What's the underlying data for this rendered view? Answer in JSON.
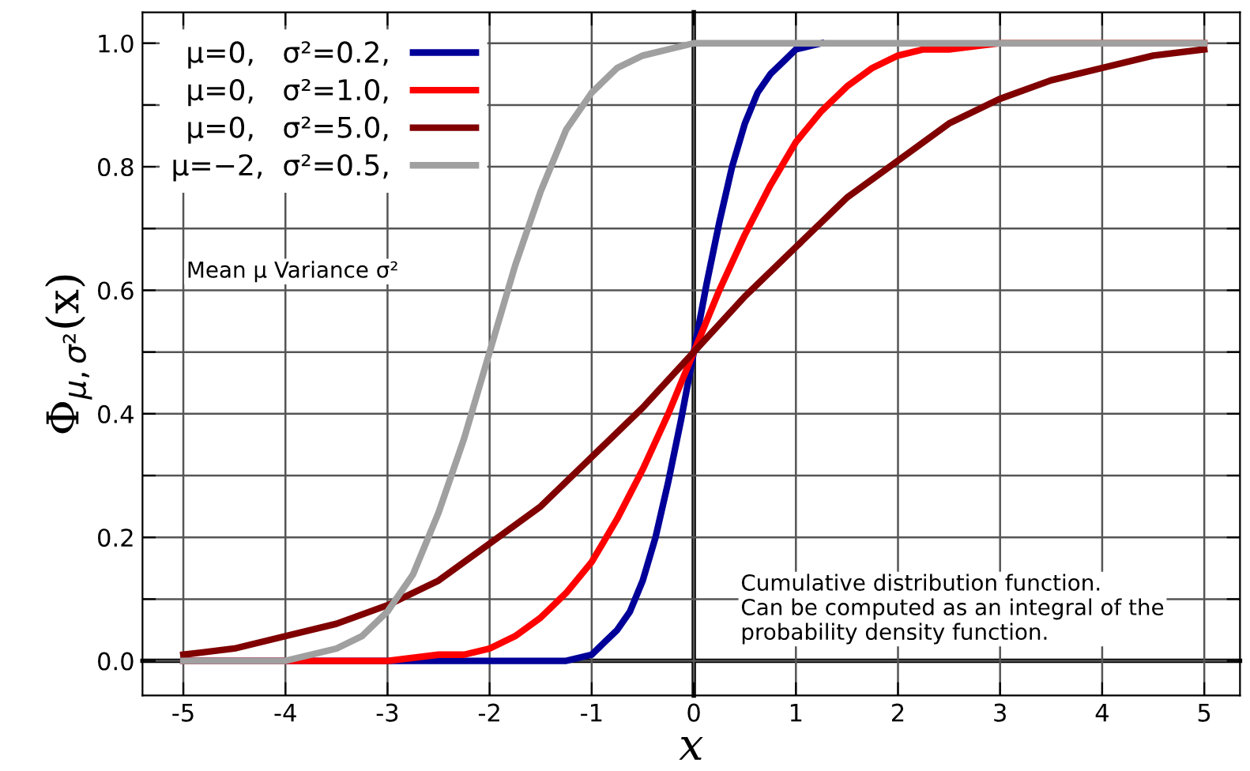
{
  "chart_data": {
    "type": "line",
    "xlabel": "x",
    "ylabel": "Φ$_{μ,σ²}$(x)",
    "xlim": [
      -5.4,
      5.35
    ],
    "ylim": [
      -0.056,
      1.05
    ],
    "xticks": [
      -5,
      -4,
      -3,
      -2,
      -1,
      0,
      1,
      2,
      3,
      4,
      5
    ],
    "yticks": [
      {
        "value": 0,
        "label": "0.0"
      },
      {
        "value": 0.1,
        "label": null
      },
      0.2,
      {
        "value": 0.3,
        "label": null
      },
      0.4,
      {
        "value": 0.5,
        "label": null
      },
      0.6,
      {
        "value": 0.7,
        "label": null
      },
      0.8,
      {
        "value": 0.9,
        "label": null
      },
      {
        "value": 1,
        "label": "1.0"
      }
    ],
    "grid": true,
    "legend": "top left",
    "marker": "none",
    "line_style": "solid",
    "annotations": [
      "Cumulative distribution function.\nCan be computed as an integral of the\nprobability density function.",
      "Mean μ Variance σ²"
    ],
    "series": [
      {
        "name": "μ=0,   σ²=0.2,",
        "color": "#000099",
        "x": [
          -5,
          -4,
          -3,
          -2,
          -1.5,
          -1.25,
          -1,
          -0.875,
          -0.75,
          -0.625,
          -0.5,
          -0.375,
          -0.25,
          -0.125,
          0,
          0.125,
          0.25,
          0.375,
          0.5,
          0.625,
          0.75,
          0.875,
          1,
          1.25
        ],
        "values": [
          0,
          0,
          0,
          0,
          0,
          0,
          0.01,
          0.03,
          0.05,
          0.08,
          0.13,
          0.2,
          0.29,
          0.39,
          0.5,
          0.61,
          0.71,
          0.8,
          0.87,
          0.92,
          0.95,
          0.97,
          0.99,
          1
        ]
      },
      {
        "name": "μ=0,   σ²=1.0,",
        "color": "#ff0000",
        "x": [
          -5,
          -4,
          -3,
          -2.5,
          -2.25,
          -2,
          -1.75,
          -1.5,
          -1.25,
          -1,
          -0.75,
          -0.5,
          -0.25,
          0,
          0.25,
          0.5,
          0.75,
          1,
          1.25,
          1.5,
          1.75,
          2,
          2.25,
          2.5,
          3,
          4,
          5
        ],
        "values": [
          0,
          0,
          0,
          0.01,
          0.01,
          0.02,
          0.04,
          0.07,
          0.11,
          0.16,
          0.23,
          0.31,
          0.4,
          0.5,
          0.6,
          0.69,
          0.77,
          0.84,
          0.89,
          0.93,
          0.96,
          0.98,
          0.99,
          0.99,
          1,
          1,
          1
        ]
      },
      {
        "name": "μ=0,   σ²=5.0,",
        "color": "#800000",
        "x": [
          -5,
          -4.5,
          -4,
          -3.5,
          -3,
          -2.5,
          -2,
          -1.5,
          -1,
          -0.5,
          0,
          0.5,
          1,
          1.5,
          2,
          2.5,
          3,
          3.5,
          4,
          4.5,
          5
        ],
        "values": [
          0.01,
          0.02,
          0.04,
          0.06,
          0.09,
          0.13,
          0.19,
          0.25,
          0.33,
          0.41,
          0.5,
          0.59,
          0.67,
          0.75,
          0.81,
          0.87,
          0.91,
          0.94,
          0.96,
          0.98,
          0.99
        ]
      },
      {
        "name": "μ=−2,  σ²=0.5,",
        "color": "#a0a0a0",
        "x": [
          -5,
          -4.5,
          -4,
          -3.75,
          -3.5,
          -3.25,
          -3,
          -2.75,
          -2.5,
          -2.25,
          -2,
          -1.75,
          -1.5,
          -1.25,
          -1,
          -0.75,
          -0.5,
          -0.25,
          0,
          1,
          2,
          3,
          4,
          5
        ],
        "values": [
          0,
          0,
          0,
          0.01,
          0.02,
          0.04,
          0.08,
          0.14,
          0.24,
          0.36,
          0.5,
          0.64,
          0.76,
          0.86,
          0.92,
          0.96,
          0.98,
          0.99,
          1,
          1,
          1,
          1,
          1,
          1
        ]
      }
    ]
  }
}
